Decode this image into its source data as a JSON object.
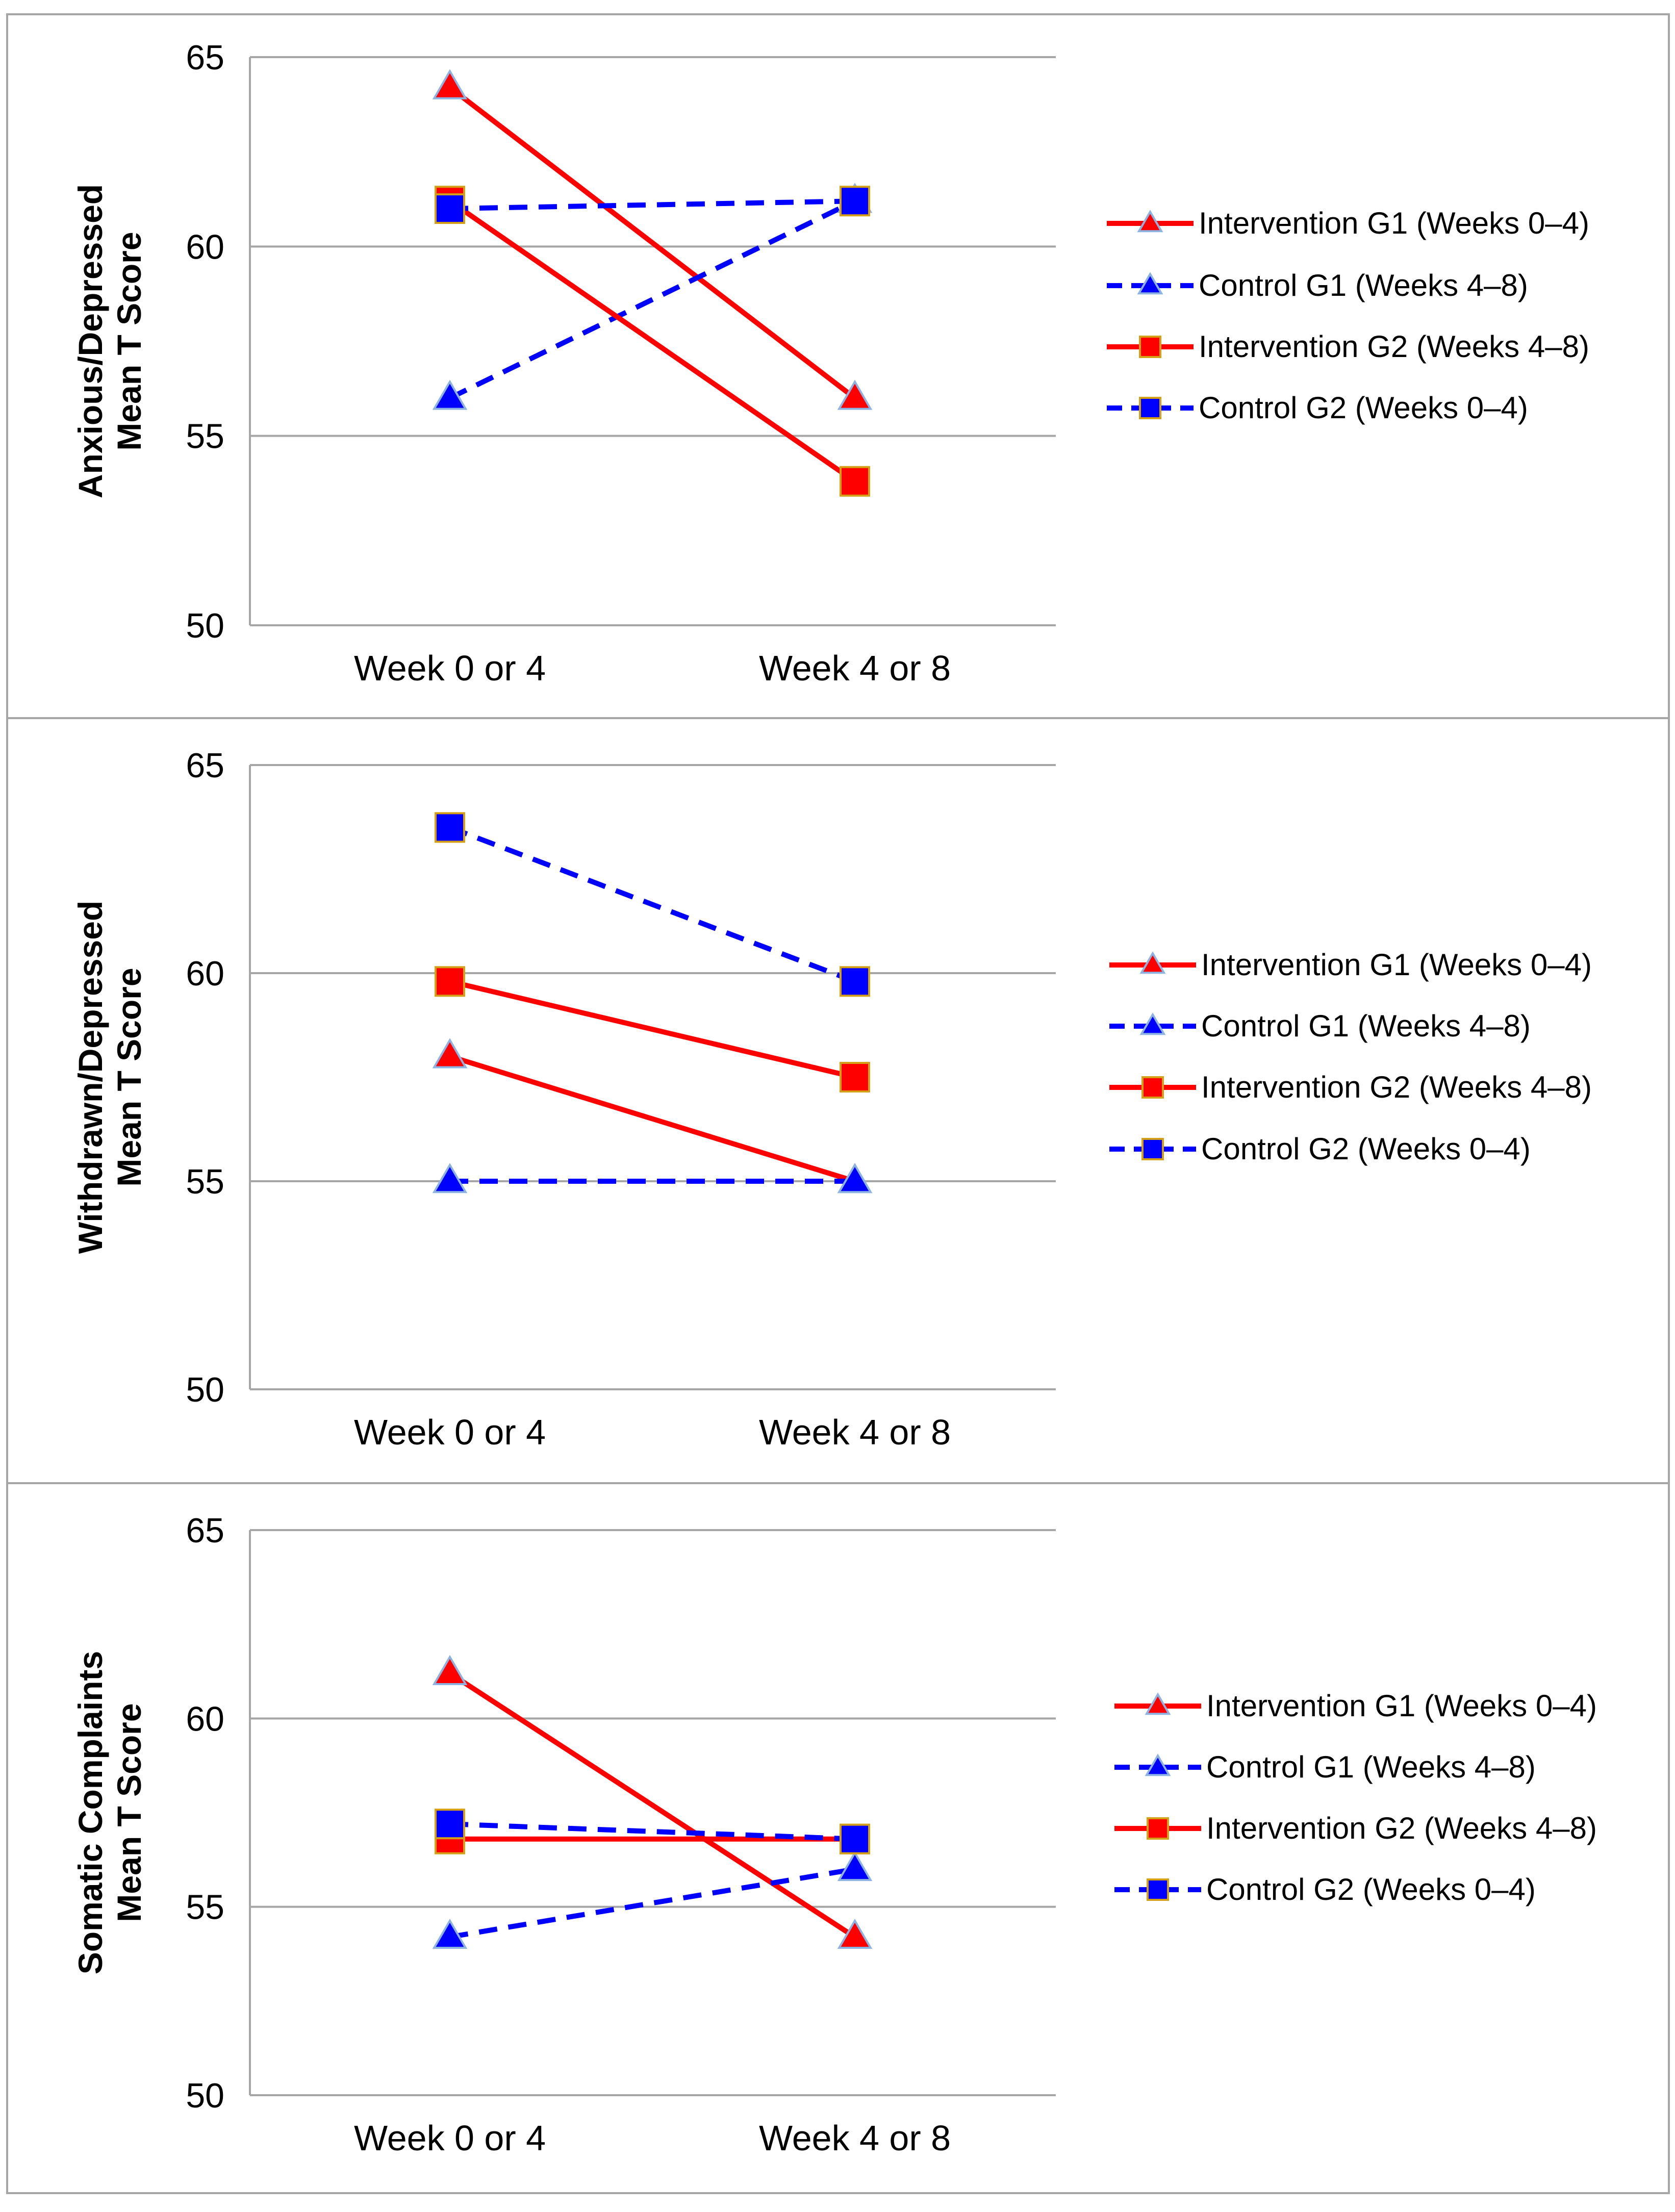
{
  "chart_data": [
    {
      "type": "line",
      "ylabel_lines": [
        "Anxious/Depressed",
        "Mean T Score"
      ],
      "categories": [
        "Week 0 or 4",
        "Week 4 or 8"
      ],
      "ylim": [
        50,
        65
      ],
      "yticks": [
        50,
        55,
        60,
        65
      ],
      "grid": true,
      "legend_position": "right",
      "series": [
        {
          "name": "Intervention G1 (Weeks 0–4)",
          "values": [
            64.2,
            56.0
          ],
          "color": "#ff0000",
          "dashed": false,
          "marker": "triangle",
          "marker_color": "#ff0000"
        },
        {
          "name": "Control G1 (Weeks 4–8)",
          "values": [
            56.0,
            61.2
          ],
          "color": "#0000ff",
          "dashed": true,
          "marker": "triangle",
          "marker_color": "#0000ff"
        },
        {
          "name": "Intervention G2 (Weeks 4–8)",
          "values": [
            61.2,
            53.8
          ],
          "color": "#ff0000",
          "dashed": false,
          "marker": "square",
          "marker_color": "#ff0000"
        },
        {
          "name": "Control G2  (Weeks 0–4)",
          "values": [
            61.0,
            61.2
          ],
          "color": "#0000ff",
          "dashed": true,
          "marker": "square",
          "marker_color": "#0000ff"
        }
      ]
    },
    {
      "type": "line",
      "ylabel_lines": [
        "Withdrawn/Depressed",
        "Mean T Score"
      ],
      "categories": [
        "Week 0 or 4",
        "Week 4 or 8"
      ],
      "ylim": [
        50,
        65
      ],
      "yticks": [
        50,
        55,
        60,
        65
      ],
      "grid": true,
      "legend_position": "right",
      "series": [
        {
          "name": "Intervention G1 (Weeks 0–4)",
          "values": [
            58.0,
            55.0
          ],
          "color": "#ff0000",
          "dashed": false,
          "marker": "triangle",
          "marker_color": "#ff0000"
        },
        {
          "name": "Control G1 (Weeks 4–8)",
          "values": [
            55.0,
            55.0
          ],
          "color": "#0000ff",
          "dashed": true,
          "marker": "triangle",
          "marker_color": "#0000ff"
        },
        {
          "name": "Intervention G2 (Weeks 4–8)",
          "values": [
            59.8,
            57.5
          ],
          "color": "#ff0000",
          "dashed": false,
          "marker": "square",
          "marker_color": "#ff0000"
        },
        {
          "name": "Control G2  (Weeks 0–4)",
          "values": [
            63.5,
            59.8
          ],
          "color": "#0000ff",
          "dashed": true,
          "marker": "square",
          "marker_color": "#0000ff"
        }
      ]
    },
    {
      "type": "line",
      "ylabel_lines": [
        "Somatic Complaints",
        "Mean T Score"
      ],
      "categories": [
        "Week 0 or 4",
        "Week 4 or 8"
      ],
      "ylim": [
        50,
        65
      ],
      "yticks": [
        50,
        55,
        60,
        65
      ],
      "grid": true,
      "legend_position": "right",
      "series": [
        {
          "name": "Intervention G1 (Weeks 0–4)",
          "values": [
            61.2,
            54.2
          ],
          "color": "#ff0000",
          "dashed": false,
          "marker": "triangle",
          "marker_color": "#ff0000"
        },
        {
          "name": "Control G1 (Weeks 4–8)",
          "values": [
            54.2,
            56.0
          ],
          "color": "#0000ff",
          "dashed": true,
          "marker": "triangle",
          "marker_color": "#0000ff"
        },
        {
          "name": "Intervention G2 (Weeks 4–8)",
          "values": [
            56.8,
            56.8
          ],
          "color": "#ff0000",
          "dashed": false,
          "marker": "square",
          "marker_color": "#ff0000"
        },
        {
          "name": "Control G2  (Weeks 0–4)",
          "values": [
            57.2,
            56.8
          ],
          "color": "#0000ff",
          "dashed": true,
          "marker": "square",
          "marker_color": "#0000ff"
        }
      ]
    }
  ]
}
